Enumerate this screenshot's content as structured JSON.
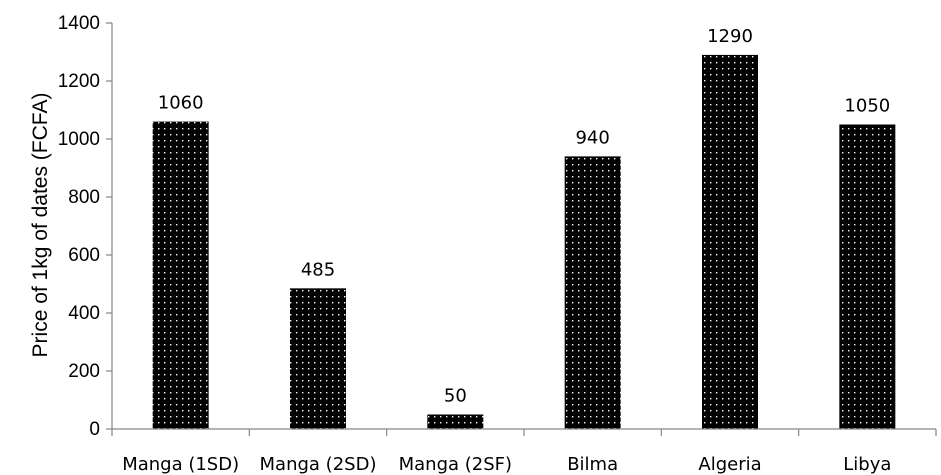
{
  "chart_data": {
    "type": "bar",
    "title": "",
    "xlabel": "",
    "ylabel": "Price of 1kg of dates (FCFA)",
    "categories": [
      "Manga (1SD)",
      "Manga (2SD)",
      "Manga (2SF)",
      "Bilma",
      "Algeria",
      "Libya"
    ],
    "values": [
      1060,
      485,
      50,
      940,
      1290,
      1050
    ],
    "data_labels": [
      "1060",
      "485",
      "50",
      "940",
      "1290",
      "1050"
    ],
    "ylim": [
      0,
      1400
    ],
    "yticks": [
      0,
      200,
      400,
      600,
      800,
      1000,
      1200,
      1400
    ],
    "grid": false,
    "legend": "none",
    "bar_fill": "#000000",
    "bar_pattern": "white-dots",
    "axis_color": "#868686",
    "text_color": "#000000"
  }
}
